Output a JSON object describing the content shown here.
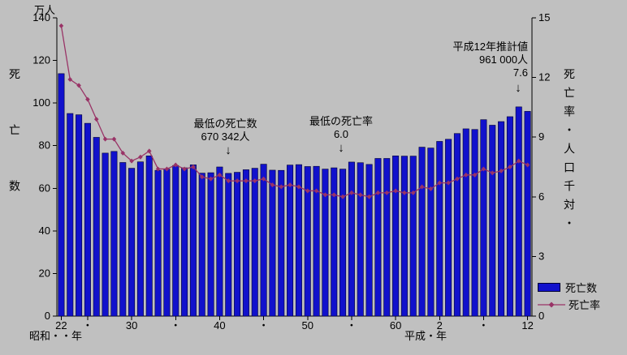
{
  "page": {
    "background": "#C0C0C0"
  },
  "chart_data": {
    "type": "bar-line-combo",
    "title": "",
    "left_axis": {
      "unit": "万人",
      "title": "死亡数",
      "min": 0,
      "max": 140,
      "ticks": [
        0,
        20,
        40,
        60,
        80,
        100,
        120,
        140
      ]
    },
    "right_axis": {
      "title": "死亡率・人口千対・",
      "min": 0,
      "max": 15,
      "ticks": [
        0,
        3,
        6,
        9,
        12,
        15
      ]
    },
    "x_axis": {
      "era_label_left": "昭和・・年",
      "era_label_right": "平成・年",
      "ticks": [
        [
          0,
          "22"
        ],
        [
          3,
          "・"
        ],
        [
          8,
          "30"
        ],
        [
          13,
          "・"
        ],
        [
          18,
          "40"
        ],
        [
          23,
          "・"
        ],
        [
          28,
          "50"
        ],
        [
          33,
          "・"
        ],
        [
          38,
          "60"
        ],
        [
          43,
          "2"
        ],
        [
          48,
          "・"
        ],
        [
          53,
          "12"
        ]
      ]
    },
    "series": [
      {
        "name": "死亡数",
        "type": "bar",
        "color": "#1111CC",
        "values": [
          113.8,
          95.1,
          94.5,
          90.5,
          83.9,
          76.5,
          77.3,
          72.1,
          69.4,
          72.4,
          75.2,
          68.4,
          69.0,
          70.7,
          69.6,
          71.0,
          67.1,
          67.3,
          70.0,
          67.0,
          67.5,
          68.7,
          69.4,
          71.3,
          68.5,
          68.4,
          70.9,
          71.1,
          70.2,
          70.3,
          69.0,
          69.6,
          69.0,
          72.3,
          72.0,
          71.2,
          74.0,
          74.0,
          75.2,
          75.1,
          75.1,
          79.3,
          78.9,
          82.0,
          83.0,
          85.7,
          87.9,
          87.6,
          92.2,
          89.6,
          91.3,
          93.6,
          98.2,
          96.1
        ]
      },
      {
        "name": "死亡率",
        "type": "line",
        "color": "#993366",
        "values": [
          14.6,
          11.9,
          11.6,
          10.9,
          9.9,
          8.9,
          8.9,
          8.2,
          7.8,
          8.0,
          8.3,
          7.4,
          7.4,
          7.6,
          7.4,
          7.5,
          7.0,
          6.9,
          7.1,
          6.8,
          6.8,
          6.8,
          6.8,
          6.9,
          6.6,
          6.5,
          6.6,
          6.5,
          6.3,
          6.3,
          6.1,
          6.1,
          6.0,
          6.2,
          6.1,
          6.0,
          6.2,
          6.2,
          6.3,
          6.2,
          6.2,
          6.5,
          6.4,
          6.7,
          6.7,
          6.9,
          7.1,
          7.1,
          7.4,
          7.2,
          7.3,
          7.5,
          7.8,
          7.6
        ]
      }
    ],
    "annotations": [
      {
        "lines": [
          "最低の死亡数",
          "670 342人"
        ],
        "arrow": "↓"
      },
      {
        "lines": [
          "最低の死亡率",
          "6.0"
        ],
        "arrow": "↓"
      },
      {
        "lines": [
          "平成12年推計値",
          "961 000人",
          "7.6"
        ],
        "arrow": "↓"
      }
    ],
    "legend": [
      {
        "label": "死亡数"
      },
      {
        "label": "死亡率"
      }
    ]
  }
}
